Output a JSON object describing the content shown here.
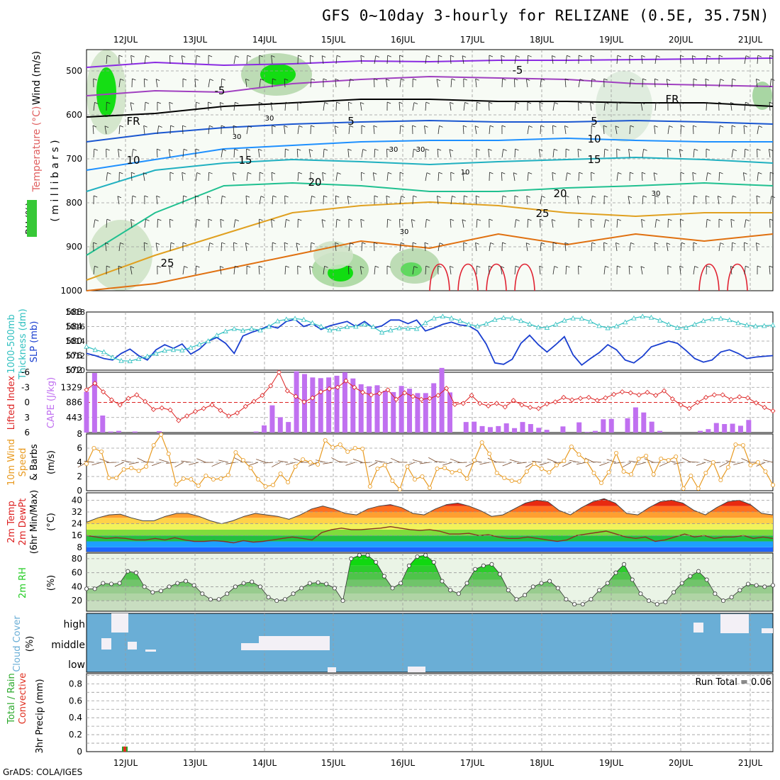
{
  "title": "GFS 0~10day 3-hourly for RELIZANE (0.5E, 35.75N)",
  "footer": "GrADS: COLA/IGES",
  "run_total_label": "Run Total = 0.06",
  "dates": [
    "12JUL",
    "13JUL",
    "14JUL",
    "15JUL",
    "16JUL",
    "17JUL",
    "18JUL",
    "19JUL",
    "20JUL",
    "21JUL"
  ],
  "colors": {
    "grid": "#9a9a9a",
    "rh_green": "#00dd00",
    "slp": "#1a3fd0",
    "thickness": "#30c0c0",
    "lifted_index": "#dd2222",
    "cape": "#c070f0",
    "wind_speed": "#e89a20",
    "cloud_bg": "#6aaed6",
    "dewpoint": "#883322",
    "rh2m": "#22cc22"
  },
  "panel_labels": {
    "sounding": {
      "wind": "Wind (m/s)",
      "temp": "Temperature (°C)",
      "rh": "RH (%)",
      "mb": "( m i l l i b a r s )"
    },
    "slp_thick": {
      "thick1": "1000-500mb",
      "thick2": "Thickness (dm)",
      "slp": "SLP (mb)"
    },
    "li_cape": {
      "li": "Lifted Index",
      "cape": "CAPE (J/kg)"
    },
    "wind10": {
      "a": "10m Wind",
      "b": "Speed",
      "c": "& Barbs",
      "unit": "(m/s)"
    },
    "temp2m": {
      "a": "2m Temp",
      "b": "2m DewPt",
      "c": "(6hr Min/Max)",
      "unit": "(°C)"
    },
    "rh2m": {
      "a": "2m RH",
      "unit": "(%)"
    },
    "cloud": {
      "a": "Cloud Cover",
      "unit": "(%)",
      "high": "high",
      "middle": "middle",
      "low": "low"
    },
    "precip": {
      "a": "Total / Rain",
      "b": "Convective",
      "c": "3hr Precip (mm)"
    }
  },
  "chart_data": [
    {
      "panel": "sounding",
      "type": "contour",
      "y_ticks": [
        "500",
        "600",
        "700",
        "800",
        "900",
        "1000"
      ],
      "contour_labels": [
        "-5",
        "-5",
        "FR",
        "FR",
        "5",
        "5",
        "10",
        "10",
        "15",
        "15",
        "20",
        "20",
        "25",
        "25",
        "30",
        "30",
        "30",
        "30",
        "10",
        "30",
        "30"
      ]
    },
    {
      "panel": "slp_thickness",
      "type": "line",
      "y_ticks_left": [
        "588",
        "584",
        "580",
        "576",
        "572"
      ],
      "y_ticks_right": [
        "1018",
        "1016",
        "1014",
        "1012",
        "1010"
      ],
      "series": [
        {
          "name": "SLP (mb)",
          "values": [
            1012.3,
            1012.0,
            1011.6,
            1011.4,
            1012.3,
            1012.9,
            1012.0,
            1011.4,
            1012.8,
            1013.5,
            1013.0,
            1013.6,
            1012.2,
            1012.9,
            1014.0,
            1014.5,
            1013.7,
            1012.3,
            1014.7,
            1015.2,
            1015.6,
            1016.1,
            1015.8,
            1016.7,
            1017.0,
            1016.0,
            1016.4,
            1015.6,
            1016.1,
            1016.4,
            1016.7,
            1016.0,
            1016.7,
            1015.8,
            1016.1,
            1016.9,
            1016.9,
            1016.4,
            1016.9,
            1015.4,
            1015.8,
            1016.3,
            1016.6,
            1016.2,
            1016.1,
            1015.4,
            1013.6,
            1011.0,
            1010.8,
            1011.5,
            1013.7,
            1014.8,
            1013.5,
            1012.5,
            1013.5,
            1014.6,
            1012.1,
            1010.7,
            1011.6,
            1012.4,
            1013.5,
            1012.8,
            1011.4,
            1011.0,
            1011.9,
            1013.2,
            1013.6,
            1014.0,
            1013.7,
            1012.7,
            1011.6,
            1011.1,
            1011.4,
            1012.5,
            1012.8,
            1012.3,
            1011.6,
            1011.8,
            1011.9,
            1012.0
          ]
        },
        {
          "name": "1000-500mb Thickness (dm)",
          "values": [
            578.5,
            577.6,
            577.0,
            575.5,
            574.6,
            574.5,
            575.1,
            575.8,
            576.6,
            577.4,
            577.6,
            577.5,
            578.2,
            579.1,
            580.0,
            581.6,
            582.7,
            583.4,
            582.9,
            583.4,
            583.0,
            584.0,
            585.5,
            586.0,
            586.2,
            585.9,
            585.0,
            584.0,
            583.0,
            583.3,
            583.9,
            584.0,
            584.6,
            583.9,
            582.4,
            583.0,
            583.6,
            583.5,
            583.4,
            585.0,
            586.3,
            586.8,
            586.3,
            585.6,
            584.6,
            584.1,
            584.8,
            585.9,
            586.4,
            586.3,
            585.6,
            584.7,
            583.8,
            583.7,
            584.6,
            585.7,
            586.3,
            586.2,
            585.4,
            584.2,
            583.6,
            584.1,
            585.2,
            586.3,
            586.8,
            586.5,
            585.7,
            584.6,
            583.7,
            583.7,
            584.6,
            585.6,
            586.1,
            586.2,
            585.8,
            585.0,
            584.4,
            584.1,
            584.2,
            584.4
          ]
        }
      ]
    },
    {
      "panel": "lifted_index_cape",
      "type": "bar",
      "y_ticks_left": [
        "-6",
        "-3",
        "0",
        "3",
        "6"
      ],
      "y_ticks_right": [
        "1329",
        "886",
        "443"
      ],
      "series": [
        {
          "name": "CAPE (J/kg)",
          "values": [
            1200,
            1750,
            500,
            30,
            50,
            0,
            30,
            0,
            0,
            40,
            0,
            0,
            0,
            0,
            0,
            0,
            0,
            0,
            0,
            0,
            0,
            30,
            210,
            800,
            450,
            310,
            1800,
            1720,
            1620,
            1600,
            1620,
            1670,
            1770,
            1590,
            1420,
            1360,
            1390,
            1230,
            1190,
            1370,
            1290,
            1160,
            1160,
            1450,
            1900,
            1180,
            0,
            310,
            320,
            190,
            160,
            190,
            270,
            130,
            310,
            250,
            140,
            80,
            0,
            180,
            0,
            300,
            20,
            50,
            390,
            400,
            0,
            420,
            740,
            590,
            320,
            50,
            0,
            0,
            0,
            0,
            50,
            100,
            280,
            250,
            260,
            200,
            370,
            0,
            0,
            0
          ]
        },
        {
          "name": "Lifted Index",
          "values": [
            -2.5,
            -3.8,
            -2.1,
            -0.5,
            0.5,
            -0.8,
            -1.5,
            -0.2,
            1.4,
            1.1,
            1.5,
            3.6,
            2.7,
            1.8,
            1.2,
            0.5,
            1.6,
            2.7,
            2.1,
            0.8,
            -0.2,
            -1.4,
            -3.3,
            -6.0,
            -2.3,
            -1.2,
            -0.1,
            -0.9,
            -2.1,
            -2.7,
            -3.0,
            -4.3,
            -3.0,
            -2.0,
            -1.5,
            -1.8,
            -2.5,
            -0.6,
            -1.9,
            -1.2,
            -0.6,
            -0.8,
            -1.4,
            -2.8,
            0.4,
            0.2,
            -1.4,
            0.2,
            0.7,
            0.2,
            0.9,
            -0.4,
            0.5,
            1.0,
            1.2,
            0.3,
            -0.1,
            -1.0,
            -0.5,
            -0.8,
            -1.0,
            -0.4,
            -0.9,
            -1.6,
            -2.1,
            -1.9,
            -1.5,
            -2.0,
            -1.4,
            -2.3,
            -0.7,
            0.5,
            1.2,
            0.0,
            -1.0,
            -1.5,
            -1.5,
            -0.6,
            -1.1,
            -0.9,
            0.1,
            1.0,
            1.7
          ]
        }
      ]
    },
    {
      "panel": "wind10m",
      "type": "line",
      "y_ticks": [
        "8",
        "6",
        "4",
        "2",
        "0"
      ],
      "series": [
        {
          "name": "Speed",
          "values": [
            3.8,
            6.0,
            5.5,
            1.8,
            1.8,
            3.0,
            3.2,
            2.8,
            3.4,
            6.4,
            7.9,
            5.2,
            0.9,
            1.7,
            1.6,
            0.7,
            2.1,
            1.6,
            1.7,
            2.2,
            5.4,
            4.3,
            3.2,
            1.6,
            0.6,
            0.8,
            2.4,
            1.2,
            3.4,
            4.4,
            4.0,
            3.7,
            7.1,
            6.1,
            6.5,
            5.5,
            6.0,
            5.9,
            0.6,
            3.1,
            3.6,
            1.4,
            0.2,
            3.4,
            1.6,
            2.0,
            0.4,
            3.1,
            3.2,
            2.6,
            2.8,
            1.7,
            4.3,
            6.8,
            5.2,
            2.5,
            1.8,
            1.4,
            1.3,
            2.7,
            3.8,
            3.1,
            2.6,
            3.6,
            4.2,
            6.2,
            5.1,
            4.2,
            2.5,
            1.1,
            2.6,
            5.3,
            2.7,
            2.3,
            4.5,
            4.9,
            2.3,
            4.5,
            4.3,
            4.8,
            0.3,
            2.1,
            0.3,
            2.5,
            4.0,
            1.5,
            3.3,
            6.5,
            6.4,
            3.6,
            4.0,
            2.7,
            0.8
          ]
        }
      ]
    },
    {
      "panel": "temp2m",
      "type": "area",
      "y_ticks": [
        "40",
        "32",
        "24",
        "16",
        "8"
      ],
      "series": [
        {
          "name": "2m Temp",
          "values": [
            25,
            28,
            30,
            30.5,
            28,
            26,
            26,
            29,
            31,
            31,
            29,
            26,
            24,
            26,
            29,
            31,
            30,
            29,
            27,
            30,
            34,
            36,
            34,
            31,
            30,
            34,
            36,
            37,
            35,
            31,
            30,
            34,
            37,
            38,
            36,
            33,
            29,
            30,
            34,
            38,
            40,
            39,
            33,
            30,
            35,
            39,
            41,
            38,
            31,
            30,
            35,
            39,
            40,
            38,
            33,
            30,
            35,
            39,
            40,
            37,
            31,
            30
          ]
        },
        {
          "name": "2m DewPt",
          "values": [
            16,
            15,
            14,
            14.5,
            14,
            13,
            13,
            14,
            13,
            14.5,
            13,
            12,
            12,
            12.5,
            12,
            11,
            12.5,
            11.5,
            12,
            13,
            14,
            15,
            14,
            13,
            18,
            20,
            21,
            20,
            20,
            20.5,
            21,
            22,
            21,
            20,
            19.5,
            20,
            19,
            17,
            17,
            17.5,
            16,
            16.5,
            15,
            14,
            14,
            15,
            14,
            13,
            12,
            13,
            16,
            17,
            18,
            19,
            17,
            15,
            14,
            15,
            12,
            13,
            15,
            17,
            15,
            16,
            14,
            15,
            15,
            16,
            14,
            15,
            14
          ]
        }
      ]
    },
    {
      "panel": "rh2m",
      "type": "area",
      "y_ticks": [
        "80",
        "60",
        "40",
        "20"
      ],
      "series": [
        {
          "name": "2m RH",
          "values": [
            37,
            37,
            45,
            44,
            45,
            62,
            60,
            40,
            32,
            34,
            40,
            45,
            48,
            42,
            30,
            22,
            22,
            30,
            40,
            45,
            47,
            40,
            25,
            20,
            22,
            30,
            38,
            45,
            46,
            44,
            38,
            20,
            80,
            85,
            85,
            75,
            55,
            38,
            45,
            70,
            83,
            85,
            75,
            48,
            35,
            30,
            45,
            65,
            70,
            72,
            58,
            35,
            22,
            28,
            40,
            45,
            48,
            38,
            22,
            15,
            15,
            22,
            35,
            45,
            60,
            72,
            50,
            30,
            20,
            15,
            18,
            32,
            45,
            55,
            62,
            50,
            30,
            20,
            25,
            35,
            44,
            42,
            40,
            42
          ]
        }
      ]
    },
    {
      "panel": "cloud_cover",
      "type": "bar",
      "y_ticks": [
        "high",
        "middle",
        "low"
      ]
    },
    {
      "panel": "precip",
      "type": "bar",
      "y_ticks": [
        "0.8",
        "0.6",
        "0.4",
        "0.2",
        "0"
      ],
      "series": [
        {
          "name": "Total / Rain",
          "values": [
            0.06
          ]
        },
        {
          "name": "Convective",
          "values": [
            0.06
          ]
        }
      ]
    }
  ]
}
